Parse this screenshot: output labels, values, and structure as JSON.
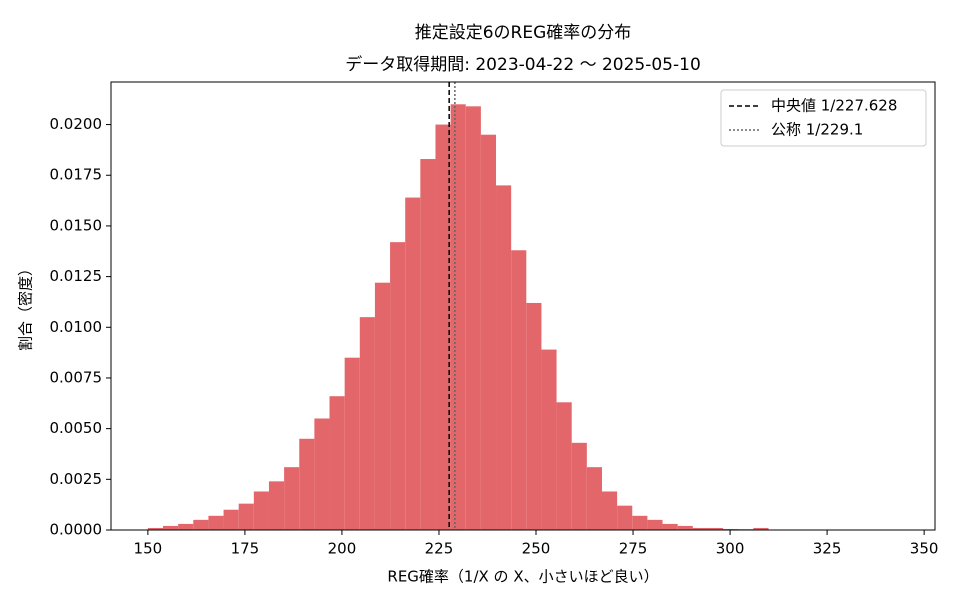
{
  "chart_data": {
    "type": "histogram",
    "title": "推定設定6のREG確率の分布",
    "subtitle": "データ取得期間: 2023-04-22 〜 2025-05-10",
    "x_label": "REG確率（1/X の X、小さいほど良い）",
    "y_label": "割合（密度）",
    "color": "#e3676a",
    "bins": [
      150,
      153.9,
      157.8,
      161.7,
      165.6,
      169.5,
      173.4,
      177.3,
      181.2,
      185.1,
      189,
      192.9,
      196.8,
      200.7,
      204.6,
      208.5,
      212.4,
      216.3,
      220.2,
      224.1,
      228,
      231.9,
      235.8,
      239.7,
      243.6,
      247.5,
      251.4,
      255.3,
      259.2,
      263.1,
      267,
      270.9,
      274.8,
      278.7,
      282.6,
      286.5,
      290.4,
      294.3,
      298.2,
      302.1,
      306,
      309.9,
      313.8,
      317.7,
      321.6,
      325.5,
      329.4,
      333.3,
      337.2,
      341.1,
      345
    ],
    "values": [
      0.0001,
      0.0002,
      0.0003,
      0.0005,
      0.0007,
      0.001,
      0.0013,
      0.0019,
      0.0024,
      0.0031,
      0.0045,
      0.0055,
      0.0066,
      0.0085,
      0.0105,
      0.0122,
      0.0142,
      0.0164,
      0.0183,
      0.02,
      0.021,
      0.0209,
      0.0195,
      0.017,
      0.0138,
      0.0112,
      0.0089,
      0.0063,
      0.0043,
      0.0031,
      0.0019,
      0.0012,
      0.0007,
      0.0005,
      0.0003,
      0.0002,
      0.0001,
      0.0001,
      5e-05,
      4e-05,
      0.0001,
      2e-05,
      2e-05,
      1e-05,
      1e-05,
      1e-05,
      1e-05,
      1e-05,
      1e-05,
      1e-05
    ],
    "xlim": [
      140.5,
      352.8
    ],
    "ylim": [
      0,
      0.0221
    ],
    "xticks": [
      150,
      175,
      200,
      225,
      250,
      275,
      300,
      325,
      350
    ],
    "yticks": [
      {
        "value": 0,
        "label": "0.0000"
      },
      {
        "value": 0.0025,
        "label": "0.0025"
      },
      {
        "value": 0.005,
        "label": "0.0050"
      },
      {
        "value": 0.0075,
        "label": "0.0075"
      },
      {
        "value": 0.01,
        "label": "0.0100"
      },
      {
        "value": 0.0125,
        "label": "0.0125"
      },
      {
        "value": 0.015,
        "label": "0.0150"
      },
      {
        "value": 0.0175,
        "label": "0.0175"
      },
      {
        "value": 0.02,
        "label": "0.0200"
      }
    ],
    "lines": [
      {
        "name": "中央値 1/227.628",
        "value": 227.628,
        "style": "dashed",
        "color": "#000000"
      },
      {
        "name": "公称 1/229.1",
        "value": 229.1,
        "style": "dotted",
        "color": "#666666"
      }
    ],
    "legend": "upper right"
  }
}
